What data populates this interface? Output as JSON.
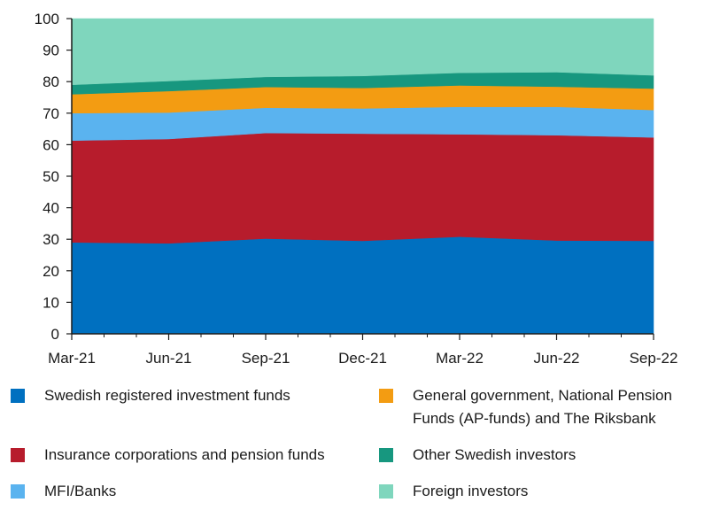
{
  "chart_data": {
    "type": "area",
    "stacked": true,
    "x": [
      "Mar-21",
      "Jun-21",
      "Sep-21",
      "Dec-21",
      "Mar-22",
      "Jun-22",
      "Sep-22"
    ],
    "ylim": [
      0,
      100
    ],
    "yticks": [
      0,
      10,
      20,
      30,
      40,
      50,
      60,
      70,
      80,
      90,
      100
    ],
    "grid": false,
    "legend_position": "bottom",
    "series": [
      {
        "name": "Swedish registered investment funds",
        "color": "#0070c0",
        "values": [
          29,
          28.7,
          30.2,
          29.5,
          30.8,
          29.6,
          29.5
        ]
      },
      {
        "name": "Insurance corporations and pension funds",
        "color": "#b71c2c",
        "values": [
          32.3,
          33.1,
          33.5,
          34.0,
          32.5,
          33.4,
          32.8
        ]
      },
      {
        "name": "MFI/Banks",
        "color": "#5ab3ef",
        "values": [
          8.7,
          8.4,
          8.0,
          8.0,
          8.7,
          9.0,
          8.7
        ]
      },
      {
        "name": "General government, National Pension Funds (AP-funds) and The Riksbank",
        "color": "#f39c12",
        "values": [
          6.0,
          6.8,
          6.6,
          6.5,
          6.8,
          6.4,
          6.8
        ]
      },
      {
        "name": "Other Swedish investors",
        "color": "#17977f",
        "values": [
          3.0,
          3.2,
          3.2,
          3.8,
          4.0,
          4.6,
          4.2
        ]
      },
      {
        "name": "Foreign investors",
        "color": "#7fd6bd",
        "values": [
          21.0,
          19.8,
          18.5,
          18.2,
          17.2,
          17.0,
          18.0
        ]
      }
    ]
  },
  "legend": [
    {
      "label": "Swedish registered investment funds",
      "color": "#0070c0"
    },
    {
      "label": "General government, National Pension Funds (AP-funds) and The Riksbank",
      "color": "#f39c12"
    },
    {
      "label": "Insurance corporations and pension funds",
      "color": "#b71c2c"
    },
    {
      "label": "Other Swedish investors",
      "color": "#17977f"
    },
    {
      "label": "MFI/Banks",
      "color": "#5ab3ef"
    },
    {
      "label": "Foreign investors",
      "color": "#7fd6bd"
    }
  ]
}
